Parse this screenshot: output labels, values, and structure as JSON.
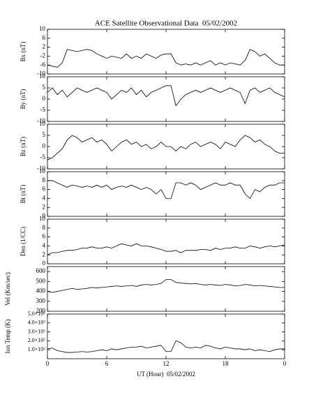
{
  "chart_data": {
    "type": "line",
    "title": "ACE Satellite Observational Data  05/02/2002",
    "xlabel": "UT (Hour)  05/02/2002",
    "color": "#000000",
    "xlim": [
      0,
      24
    ],
    "xticks": [
      0,
      6,
      12,
      18,
      {
        "value": 24,
        "label": "0"
      }
    ],
    "x": [
      0,
      0.5,
      1,
      1.5,
      2,
      2.5,
      3,
      3.5,
      4,
      4.5,
      5,
      5.5,
      6,
      6.5,
      7,
      7.5,
      8,
      8.5,
      9,
      9.5,
      10,
      10.5,
      11,
      11.5,
      12,
      12.5,
      13,
      13.5,
      14,
      14.5,
      15,
      15.5,
      16,
      16.5,
      17,
      17.5,
      18,
      18.5,
      19,
      19.5,
      20,
      20.5,
      21,
      21.5,
      22,
      22.5,
      23,
      23.5,
      24
    ],
    "panels": [
      {
        "ylabel": "Bx (nT)",
        "ylim": [
          -10,
          10
        ],
        "yticks": [
          -10,
          -6,
          -2,
          2,
          6,
          10
        ],
        "values": [
          -6,
          -6.5,
          -7,
          -5,
          1,
          0.5,
          0,
          0.5,
          1,
          0.5,
          -1,
          -2,
          -3,
          -2,
          -2.5,
          -3,
          -1,
          -3,
          -2,
          -3,
          -1,
          -2,
          -3,
          -1.5,
          -1,
          -1,
          -5,
          -6,
          -5.5,
          -6,
          -5,
          -6,
          -5,
          -4,
          -6,
          -5,
          -6,
          -5,
          -5.5,
          -6,
          -4,
          1,
          0,
          -2,
          -1,
          -3,
          -5,
          -6,
          -6
        ]
      },
      {
        "ylabel": "By (nT)",
        "ylim": [
          -10,
          10
        ],
        "yticks": [
          -10,
          -5,
          0,
          5,
          10
        ],
        "values": [
          3,
          5,
          2,
          4,
          1,
          3,
          5,
          4,
          3,
          4,
          5,
          4,
          3,
          0,
          2,
          4,
          3,
          5,
          2,
          4,
          1,
          3,
          4,
          5,
          6,
          6,
          -3,
          0,
          2,
          3,
          4,
          3,
          4,
          5,
          4,
          3,
          4,
          5,
          4,
          3,
          -2,
          4,
          5,
          3,
          4,
          5,
          3,
          2,
          1
        ]
      },
      {
        "ylabel": "Bz (nT)",
        "ylim": [
          -10,
          10
        ],
        "yticks": [
          -10,
          -5,
          0,
          5,
          10
        ],
        "values": [
          -6,
          -5,
          -3,
          -1,
          3,
          5,
          4,
          2,
          3,
          4,
          2,
          3,
          1,
          -2,
          0,
          2,
          3,
          1,
          2,
          0,
          1,
          -1,
          0,
          2,
          0,
          0,
          -2,
          0,
          -1,
          1,
          2,
          0,
          1,
          2,
          1,
          -1,
          2,
          1,
          0,
          3,
          5,
          4,
          2,
          3,
          1,
          0,
          -2,
          -3,
          -3
        ]
      },
      {
        "ylabel": "Bt (nT)",
        "ylim": [
          0,
          10
        ],
        "yticks": [
          0,
          2,
          4,
          6,
          8,
          10
        ],
        "values": [
          8,
          8,
          7.5,
          7,
          6.5,
          7,
          6.8,
          6.5,
          6.8,
          6.5,
          7,
          6.5,
          7,
          6,
          6.5,
          6.8,
          6.5,
          7,
          6.5,
          6,
          6.5,
          6,
          5,
          6,
          4,
          4,
          7.5,
          7.5,
          7,
          7.5,
          7,
          6,
          6.5,
          7,
          7.5,
          7,
          7,
          7.5,
          7,
          7,
          5,
          4,
          6,
          5.5,
          6.5,
          7,
          7,
          7.5,
          7.5
        ]
      },
      {
        "ylabel": "Den (1/CC)",
        "ylim": [
          0,
          10
        ],
        "yticks": [
          0,
          2,
          4,
          6,
          8,
          10
        ],
        "values": [
          2,
          2.5,
          2.5,
          2.8,
          3,
          3,
          3.2,
          3.5,
          3.5,
          3.8,
          3.5,
          3.5,
          3.8,
          3.5,
          4,
          4.5,
          4.2,
          4,
          4.5,
          4,
          4,
          3.8,
          3.5,
          3.2,
          2.8,
          2.8,
          3,
          2.5,
          3,
          3,
          3,
          3.2,
          3.2,
          3,
          3.5,
          3.2,
          3.5,
          3.5,
          3.8,
          3.5,
          3.5,
          4,
          3.8,
          3.5,
          3.8,
          4,
          3.8,
          4,
          4.2
        ]
      },
      {
        "ylabel": "Vel (Km/sec)",
        "ylim": [
          200,
          650
        ],
        "yticks": [
          200,
          300,
          400,
          500,
          600
        ],
        "values": [
          400,
          390,
          400,
          410,
          420,
          430,
          420,
          425,
          430,
          440,
          435,
          440,
          445,
          450,
          455,
          450,
          455,
          460,
          450,
          465,
          470,
          465,
          470,
          480,
          520,
          520,
          490,
          485,
          480,
          475,
          480,
          470,
          465,
          470,
          465,
          460,
          470,
          465,
          455,
          460,
          470,
          465,
          455,
          460,
          455,
          450,
          445,
          440,
          440
        ]
      },
      {
        "ylabel": "Ion Temp (K)",
        "ylim": [
          0,
          500000
        ],
        "yticks": [
          {
            "value": 100000,
            "label": "1.0×10⁵"
          },
          {
            "value": 200000,
            "label": "2.0×10⁵"
          },
          {
            "value": 300000,
            "label": "3.0×10⁵"
          },
          {
            "value": 400000,
            "label": "4.0×10⁵"
          },
          {
            "value": 500000,
            "label": "5.0×10⁵"
          }
        ],
        "values": [
          110000,
          120000,
          90000,
          80000,
          70000,
          70000,
          75000,
          80000,
          75000,
          80000,
          90000,
          100000,
          90000,
          110000,
          100000,
          110000,
          120000,
          130000,
          130000,
          140000,
          120000,
          130000,
          140000,
          150000,
          80000,
          80000,
          200000,
          180000,
          130000,
          120000,
          130000,
          120000,
          150000,
          140000,
          120000,
          110000,
          130000,
          120000,
          110000,
          110000,
          100000,
          110000,
          90000,
          100000,
          90000,
          80000,
          100000,
          110000,
          110000
        ]
      }
    ]
  }
}
